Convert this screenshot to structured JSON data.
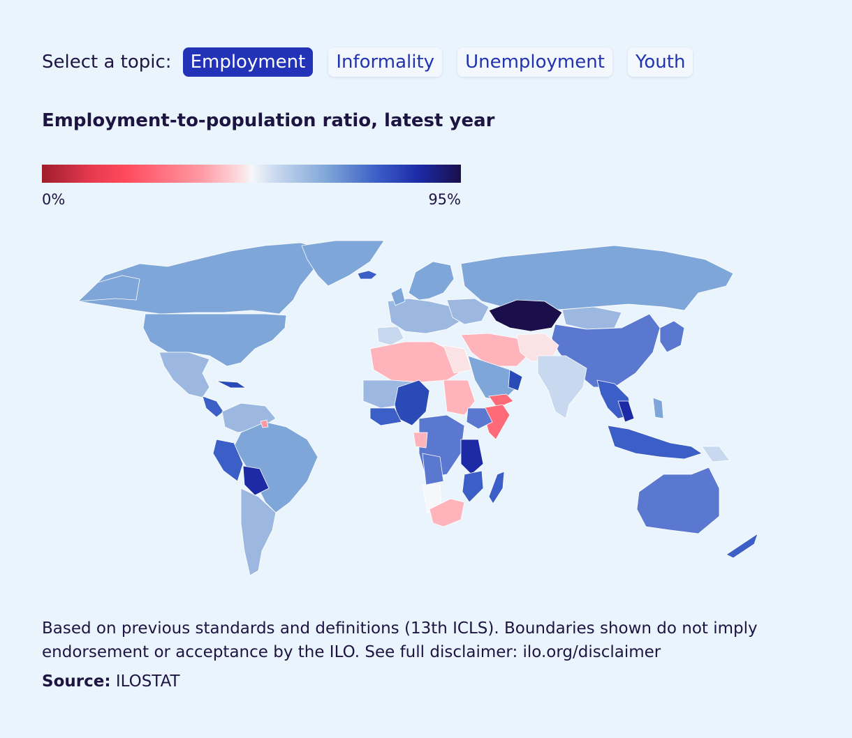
{
  "topic_selector": {
    "label": "Select a topic:",
    "options": [
      "Employment",
      "Informality",
      "Unemployment",
      "Youth"
    ],
    "selected": "Employment"
  },
  "chart_title": "Employment-to-population ratio, latest year",
  "legend": {
    "min_label": "0%",
    "max_label": "95%"
  },
  "footnote": "Based on previous standards and definitions (13th ICLS). Boundaries shown do not imply endorsement or acceptance by the ILO. See full disclaimer: ilo.org/disclaimer",
  "source": {
    "label": "Source:",
    "value": "ILOSTAT"
  },
  "colors": {
    "background": "#eaf4fd",
    "active_button": "#2233b8",
    "scale": [
      "#a01d2c",
      "#ff4a5c",
      "#f5f7fb",
      "#7fa6d8",
      "#1c2aa6",
      "#1a0f4a"
    ]
  }
}
